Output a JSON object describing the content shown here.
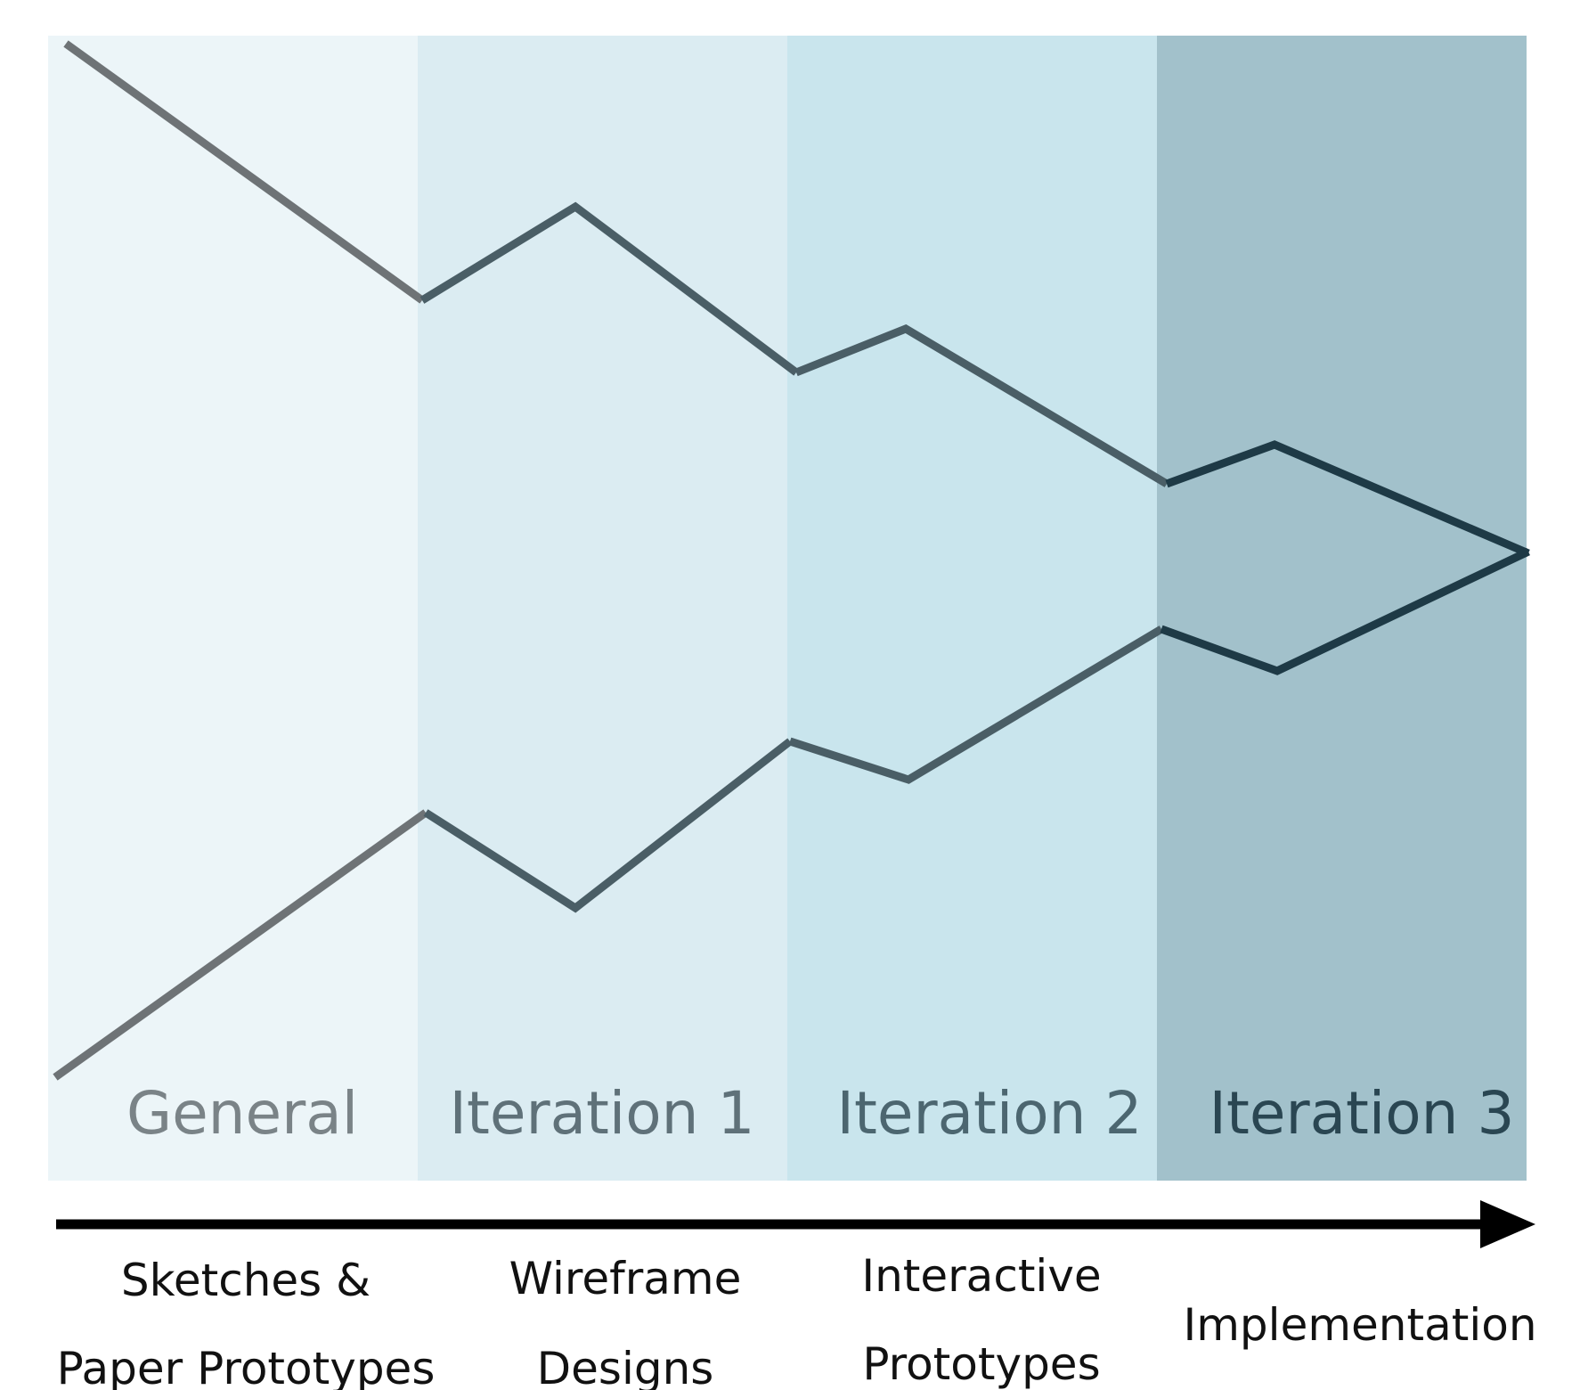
{
  "phases": [
    {
      "label": "General",
      "color": "#ecf5f8",
      "text_color": "#7a8387"
    },
    {
      "label": "Iteration 1",
      "color": "#dbecf2",
      "text_color": "#5f7179"
    },
    {
      "label": "Iteration 2",
      "color": "#c9e5ed",
      "text_color": "#4c6670"
    },
    {
      "label": "Iteration 3",
      "color": "#a2c1cb",
      "text_color": "#2a4652"
    }
  ],
  "stages": [
    {
      "line1": "Sketches &",
      "line2": "Paper Prototypes"
    },
    {
      "line1": "Wireframe",
      "line2": "Designs"
    },
    {
      "line1": "Interactive",
      "line2": "Prototypes"
    },
    {
      "line1": "Implementation",
      "line2": ""
    }
  ],
  "colors": {
    "line_light": "#6e7376",
    "line_mid": "#4a5e66",
    "line_dark": "#1e3a46",
    "arrow": "#000000"
  }
}
